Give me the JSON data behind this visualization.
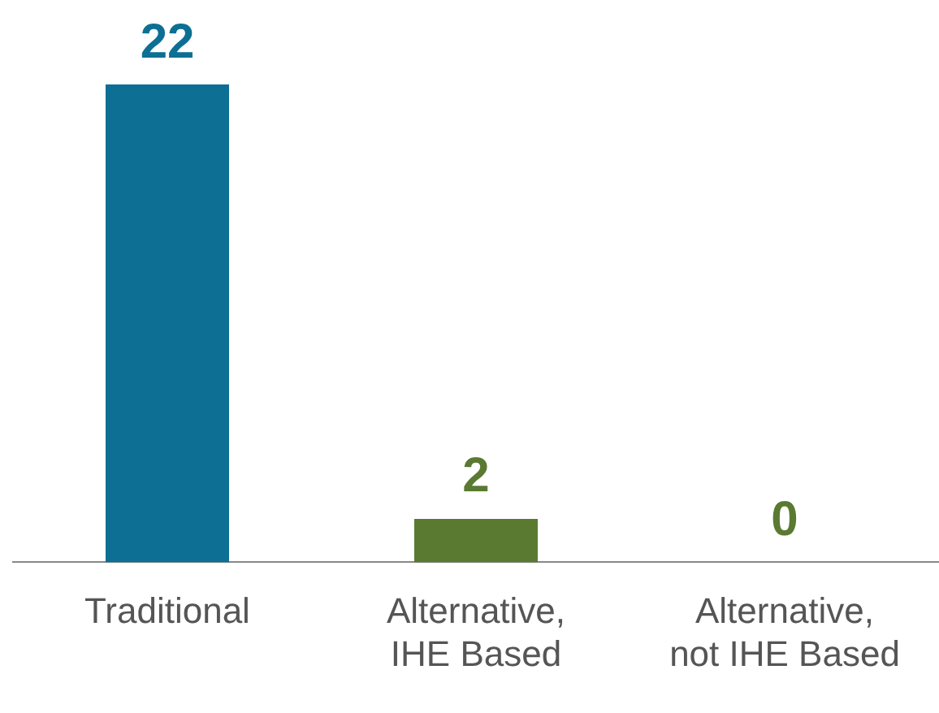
{
  "chart_data": {
    "type": "bar",
    "categories": [
      "Traditional",
      "Alternative, IHE Based",
      "Alternative, not IHE Based"
    ],
    "values": [
      22,
      2,
      0
    ],
    "colors": [
      "#0e6f94",
      "#5a7a32",
      "#5a7a32"
    ],
    "ylim": [
      0,
      22
    ],
    "tick_labels": "x",
    "data_labels": true,
    "grid": false,
    "legend": false
  }
}
